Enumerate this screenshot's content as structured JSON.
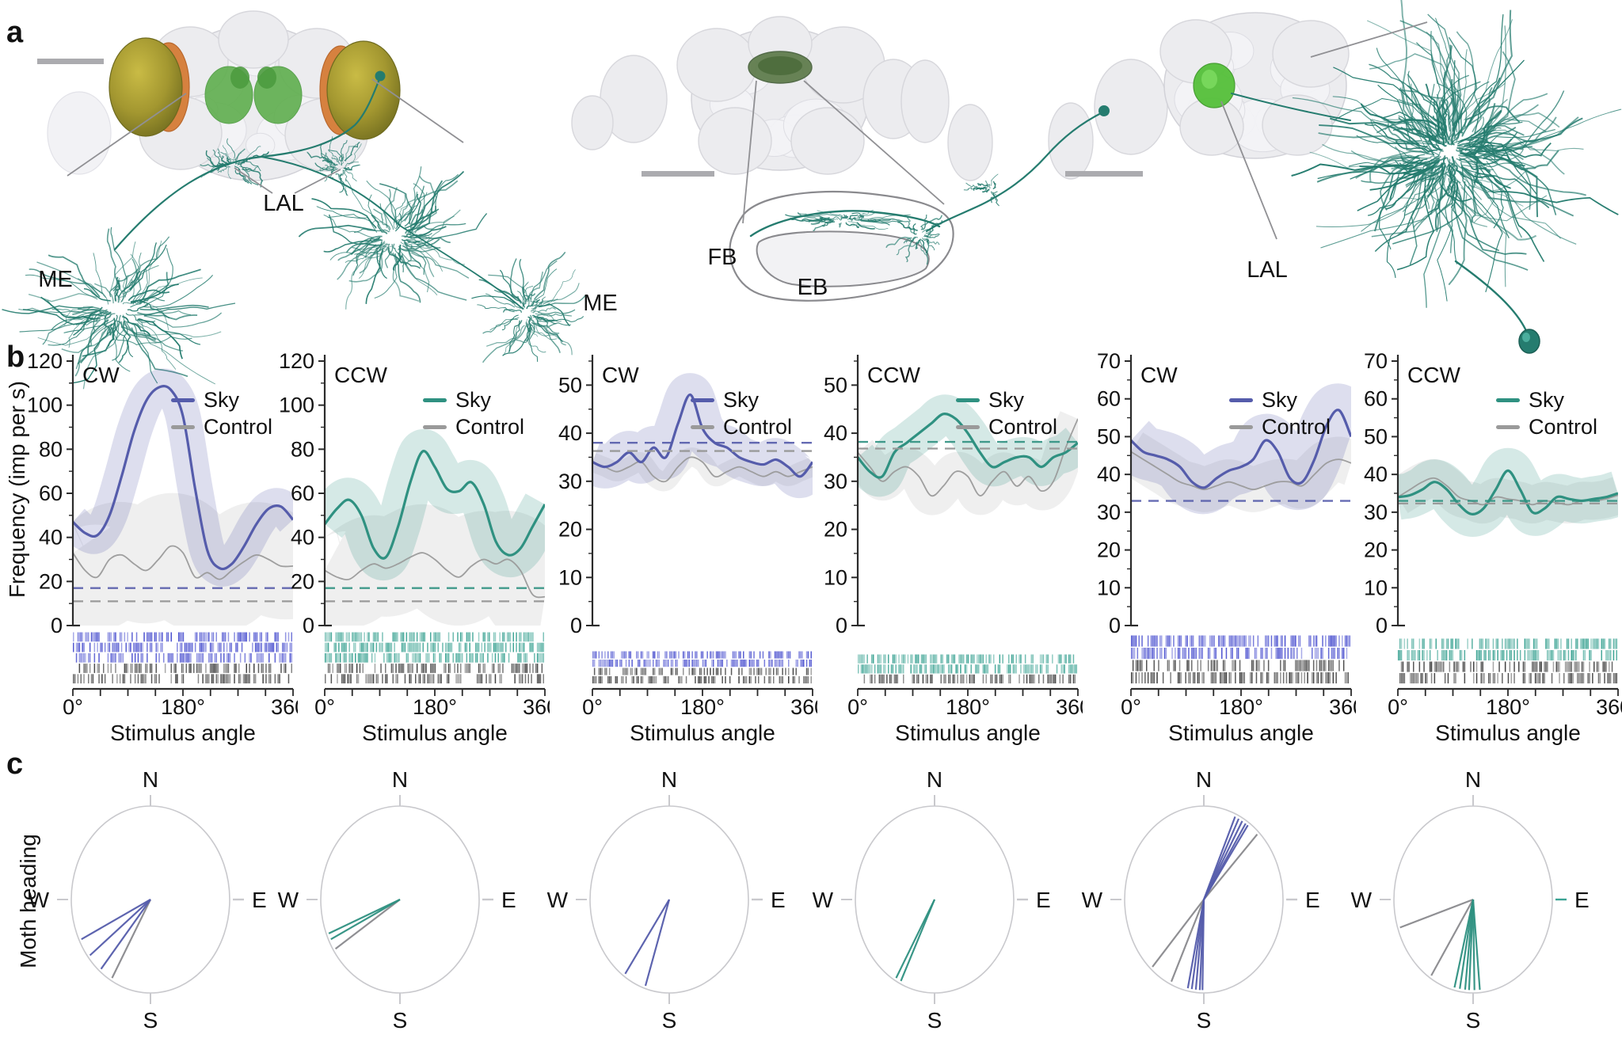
{
  "figure": {
    "panel_a": "a",
    "panel_b": "b",
    "panel_c": "c"
  },
  "anatomy": {
    "label_lal_left": "LAL",
    "label_me_left": "ME",
    "label_me_right": "ME",
    "label_fb": "FB",
    "label_eb": "EB",
    "label_lal_right": "LAL"
  },
  "axes": {
    "ylabel": "Frequency (imp per s)",
    "xlabel": "Stimulus angle",
    "x_ticks": [
      "0°",
      "180°",
      "360°"
    ],
    "x_tick_values": [
      0,
      180,
      360
    ],
    "x_minor_step_deg": 45,
    "xlim": [
      0,
      360
    ],
    "moth_heading_label": "Moth heading",
    "compass": {
      "n": "N",
      "e": "E",
      "s": "S",
      "w": "W"
    }
  },
  "colors": {
    "sky_blue": "#555cab",
    "sky_teal": "#2f9181",
    "control": "#9a9a9a",
    "control_dark": "#6f6f73",
    "raster_blue": "#4a50cf",
    "raster_teal": "#3ba393",
    "raster_dark": "#3f3f3f",
    "axis": "#2b2b2b",
    "neuron_teal": "#257c6f",
    "brain_gray": "#ececef",
    "green_bright": "#55c03a",
    "green_mid": "#5fae4e",
    "green_dark_fb": "#5c7a49",
    "eye_yellow": "#a39730",
    "eye_orange": "#d6813f",
    "scalebar": "#ababaf",
    "polar_ring": "#c9c9cd"
  },
  "chart_data": [
    {
      "type": "line",
      "title": "CW",
      "legend": {
        "sky": "Sky",
        "control": "Control"
      },
      "sky_color": "#555cab",
      "raster_color": "#4a50cf",
      "ylim": [
        0,
        120
      ],
      "ytick_step": 20,
      "ytick_minor": 10,
      "x": [
        0,
        20,
        40,
        60,
        80,
        100,
        120,
        140,
        160,
        180,
        200,
        220,
        240,
        260,
        280,
        300,
        320,
        340,
        360
      ],
      "series": [
        {
          "name": "Sky",
          "values": [
            47,
            42,
            41,
            50,
            68,
            88,
            102,
            108,
            107,
            95,
            62,
            34,
            26,
            28,
            36,
            46,
            53,
            54,
            48
          ]
        },
        {
          "name": "Control",
          "values": [
            33,
            25,
            22,
            30,
            32,
            28,
            25,
            30,
            36,
            33,
            22,
            24,
            21,
            25,
            29,
            32,
            30,
            27,
            27
          ]
        }
      ],
      "sky_dash": 17,
      "control_dash": 11,
      "sky_band": 8,
      "control_band": 24,
      "raster_rows": [
        "sky",
        "sky",
        "sky",
        "control",
        "control"
      ],
      "raster_h": 66
    },
    {
      "type": "line",
      "title": "CCW",
      "legend": {
        "sky": "Sky",
        "control": "Control"
      },
      "sky_color": "#2f9181",
      "raster_color": "#3ba393",
      "ylim": [
        0,
        120
      ],
      "ytick_step": 20,
      "ytick_minor": 10,
      "x": [
        0,
        20,
        40,
        60,
        80,
        100,
        120,
        140,
        160,
        180,
        200,
        220,
        240,
        260,
        280,
        300,
        320,
        340,
        360
      ],
      "series": [
        {
          "name": "Sky",
          "values": [
            46,
            53,
            57,
            50,
            35,
            31,
            45,
            65,
            79,
            72,
            62,
            61,
            65,
            55,
            38,
            32,
            35,
            45,
            55
          ]
        },
        {
          "name": "Control",
          "values": [
            25,
            22,
            21,
            25,
            28,
            26,
            28,
            31,
            33,
            30,
            25,
            22,
            27,
            30,
            28,
            30,
            25,
            14,
            13
          ]
        }
      ],
      "sky_dash": 17,
      "control_dash": 11,
      "sky_band": 10,
      "control_band": 22,
      "raster_rows": [
        "sky",
        "sky",
        "sky",
        "control",
        "control"
      ],
      "raster_h": 66
    },
    {
      "type": "line",
      "title": "CW",
      "legend": {
        "sky": "Sky",
        "control": "Control"
      },
      "sky_color": "#555cab",
      "raster_color": "#4a50cf",
      "ylim": [
        0,
        55
      ],
      "ytick_step": 10,
      "ytick_minor": 5,
      "x": [
        0,
        20,
        40,
        60,
        80,
        100,
        120,
        140,
        160,
        180,
        200,
        220,
        240,
        260,
        280,
        300,
        320,
        340,
        360
      ],
      "series": [
        {
          "name": "Sky",
          "values": [
            34,
            33,
            34,
            36,
            34,
            37,
            35,
            42,
            48,
            41,
            38,
            37,
            35,
            34,
            33.5,
            34.5,
            33,
            31,
            34
          ]
        },
        {
          "name": "Control",
          "values": [
            34,
            33,
            32,
            33,
            34,
            31,
            30,
            33,
            35,
            34,
            31,
            32,
            33,
            32,
            31,
            32,
            31,
            32,
            33
          ]
        }
      ],
      "sky_dash": 38,
      "control_dash": 36.3,
      "sky_band": 4.5,
      "control_band": 2,
      "raster_rows": [
        "sky",
        "sky",
        "control",
        "control"
      ],
      "raster_h": 42
    },
    {
      "type": "line",
      "title": "CCW",
      "legend": {
        "sky": "Sky",
        "control": "Control"
      },
      "sky_color": "#2f9181",
      "raster_color": "#3ba393",
      "ylim": [
        0,
        55
      ],
      "ytick_step": 10,
      "ytick_minor": 5,
      "x": [
        0,
        20,
        40,
        60,
        80,
        100,
        120,
        140,
        160,
        180,
        200,
        220,
        240,
        260,
        280,
        300,
        320,
        340,
        360
      ],
      "series": [
        {
          "name": "Sky",
          "values": [
            35,
            32,
            31,
            36,
            38,
            40,
            42,
            44,
            43,
            40,
            36,
            33,
            34,
            35,
            35,
            33,
            35,
            36,
            38
          ]
        },
        {
          "name": "Control",
          "values": [
            36,
            33,
            30,
            32,
            33,
            31,
            27,
            29,
            32,
            31,
            27,
            30,
            32,
            29,
            31,
            28,
            30,
            37,
            43
          ]
        }
      ],
      "sky_dash": 38.2,
      "control_dash": 36.8,
      "sky_band": 4,
      "control_band": 4,
      "raster_rows": [
        "sky",
        "sky",
        "control"
      ],
      "raster_h": 38
    },
    {
      "type": "line",
      "title": "CW",
      "legend": {
        "sky": "Sky",
        "control": "Control"
      },
      "sky_color": "#555cab",
      "raster_color": "#4a50cf",
      "ylim": [
        0,
        70
      ],
      "ytick_step": 10,
      "ytick_minor": 5,
      "x": [
        0,
        20,
        40,
        60,
        80,
        100,
        120,
        140,
        160,
        180,
        200,
        220,
        240,
        260,
        280,
        300,
        320,
        340,
        360
      ],
      "series": [
        {
          "name": "Sky",
          "values": [
            49,
            46,
            45,
            44,
            42,
            38,
            36.5,
            39,
            41,
            42,
            44,
            49,
            46,
            39,
            38,
            44,
            53,
            57,
            50
          ]
        },
        {
          "name": "Control",
          "values": [
            46,
            44,
            42,
            40,
            38,
            37,
            36,
            37,
            38,
            37,
            36,
            37,
            38,
            38,
            37,
            40,
            43,
            44,
            43
          ]
        }
      ],
      "sky_dash": 33,
      "control_dash": null,
      "sky_band": 7,
      "control_band": 6,
      "raster_rows": [
        "sky",
        "sky",
        "control",
        "control"
      ],
      "raster_h": 62
    },
    {
      "type": "line",
      "title": "CCW",
      "legend": {
        "sky": "Sky",
        "control": "Control"
      },
      "sky_color": "#2f9181",
      "raster_color": "#3ba393",
      "ylim": [
        0,
        70
      ],
      "ytick_step": 10,
      "ytick_minor": 5,
      "x": [
        0,
        20,
        40,
        60,
        80,
        100,
        120,
        140,
        160,
        180,
        200,
        220,
        240,
        260,
        280,
        300,
        320,
        340,
        360
      ],
      "series": [
        {
          "name": "Sky",
          "values": [
            34,
            34.5,
            36,
            38,
            36,
            32,
            29.5,
            31,
            36,
            41,
            36,
            30,
            31,
            34,
            33.5,
            33,
            33.5,
            34,
            35
          ]
        },
        {
          "name": "Control",
          "values": [
            34,
            36,
            38,
            39,
            37,
            34,
            33,
            32,
            34,
            33.5,
            33,
            32,
            33,
            32.5,
            32,
            33,
            33,
            33.5,
            34.5
          ]
        }
      ],
      "sky_dash": 33,
      "control_dash": 32.3,
      "sky_band": 6,
      "control_band": 5,
      "raster_rows": [
        "sky",
        "sky",
        "control",
        "control"
      ],
      "raster_h": 58
    },
    {
      "type": "polar",
      "sky_color": "#555cab",
      "sky_bearings_deg": [
        244,
        232,
        220
      ],
      "control_bearings_deg": [
        210
      ]
    },
    {
      "type": "polar",
      "sky_color": "#2f9181",
      "sky_bearings_deg": [
        248,
        244
      ],
      "control_bearings_deg": [
        237
      ]
    },
    {
      "type": "polar",
      "sky_color": "#555cab",
      "sky_bearings_deg": [
        215,
        198
      ],
      "control_bearings_deg": []
    },
    {
      "type": "polar",
      "sky_color": "#2f9181",
      "sky_bearings_deg": [
        210,
        206
      ],
      "control_bearings_deg": []
    },
    {
      "type": "polar",
      "sky_color": "#555cab",
      "sky_bearings_deg": [
        24,
        27,
        30,
        33,
        35,
        181,
        183,
        186,
        189,
        192
      ],
      "control_bearings_deg": [
        44,
        205,
        222
      ]
    },
    {
      "type": "polar",
      "sky_color": "#2f9181",
      "e_tick_color": "#3ba393",
      "sky_bearings_deg": [
        194,
        190,
        186,
        183,
        179,
        175
      ],
      "control_bearings_deg": [
        252,
        213
      ]
    }
  ]
}
